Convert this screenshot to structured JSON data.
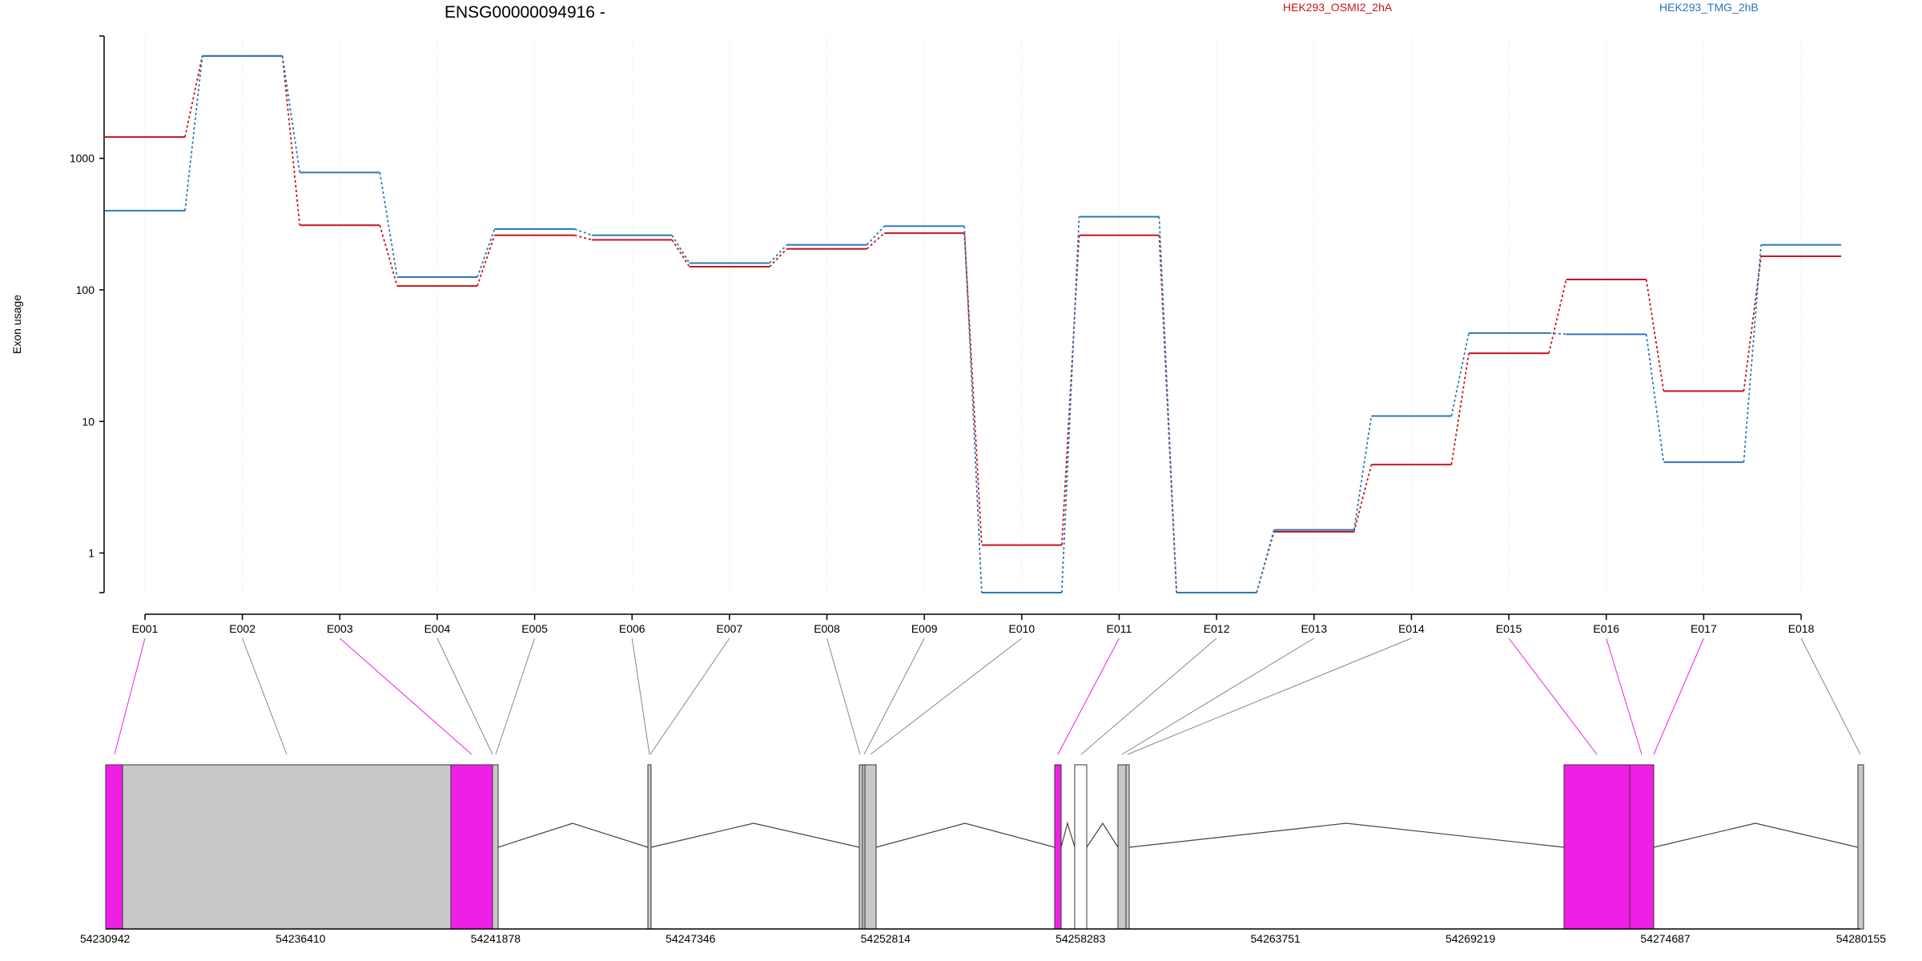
{
  "chart_data": {
    "type": "line",
    "title": "ENSG00000094916 -",
    "ylabel": "Exon usage",
    "yscale": "log",
    "ylim": [
      0.5,
      8500
    ],
    "yticks": [
      {
        "value": 1,
        "label": "1"
      },
      {
        "value": 10,
        "label": "10"
      },
      {
        "value": 100,
        "label": "100"
      },
      {
        "value": 1000,
        "label": "1000"
      }
    ],
    "grid": true,
    "legend_position": "top",
    "categories": [
      "E001",
      "E002",
      "E003",
      "E004",
      "E005",
      "E006",
      "E007",
      "E008",
      "E009",
      "E010",
      "E011",
      "E012",
      "E013",
      "E014",
      "E015",
      "E016",
      "E017",
      "E018"
    ],
    "series": [
      {
        "name": "HEK293_OSMI2_2hA",
        "color": "#c8151b",
        "values": [
          1450,
          6000,
          310,
          107,
          260,
          240,
          150,
          205,
          270,
          1.15,
          260,
          0.5,
          1.45,
          4.7,
          33,
          120,
          17,
          180
        ]
      },
      {
        "name": "HEK293_TMG_2hB",
        "color": "#2c78b9",
        "values": [
          400,
          6000,
          780,
          125,
          290,
          260,
          160,
          220,
          305,
          0.5,
          360,
          0.5,
          1.5,
          11,
          47,
          46,
          4.9,
          220
        ]
      }
    ],
    "gene_model": {
      "genomic_ticks": [
        "54230942",
        "54236410",
        "54241878",
        "54247346",
        "54252814",
        "54258283",
        "54263751",
        "54269219",
        "54274687",
        "54280155"
      ],
      "exon_fill_normal": "#c8c8c8",
      "exon_fill_significant": "#f01fe6"
    }
  }
}
